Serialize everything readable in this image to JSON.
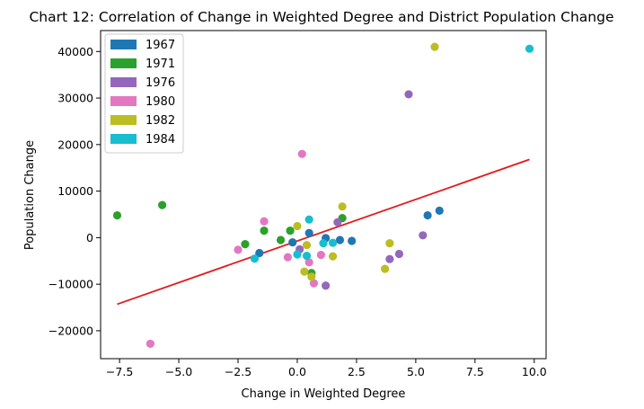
{
  "chart_data": {
    "type": "scatter",
    "title": "Chart 12: Correlation of Change in Weighted Degree and District Population Change",
    "xlabel": "Change in Weighted Degree",
    "ylabel": "Population Change",
    "xlim": [
      -8.3,
      10.5
    ],
    "ylim": [
      -26000,
      44500
    ],
    "xticks": [
      -7.5,
      -5.0,
      -2.5,
      0.0,
      2.5,
      5.0,
      7.5,
      10.0
    ],
    "xtick_labels": [
      "−7.5",
      "−5.0",
      "−2.5",
      "0.0",
      "2.5",
      "5.0",
      "7.5",
      "10.0"
    ],
    "yticks": [
      -20000,
      -10000,
      0,
      10000,
      20000,
      30000,
      40000
    ],
    "ytick_labels": [
      "−20000",
      "−10000",
      "0",
      "10000",
      "20000",
      "30000",
      "40000"
    ],
    "grid": false,
    "legend_position": "top-left",
    "trendline": {
      "color": "#e31a1c",
      "x": [
        -7.6,
        9.8
      ],
      "y": [
        -14300,
        16800
      ]
    },
    "series": [
      {
        "name": "1967",
        "color": "#1f77b4",
        "points": [
          [
            -0.2,
            -1000
          ],
          [
            0.5,
            1000
          ],
          [
            1.2,
            -100
          ],
          [
            1.8,
            -500
          ],
          [
            2.3,
            -700
          ],
          [
            5.5,
            4800
          ],
          [
            6.0,
            5800
          ],
          [
            -1.6,
            -3300
          ]
        ]
      },
      {
        "name": "1971",
        "color": "#2ca02c",
        "points": [
          [
            -7.6,
            4800
          ],
          [
            -5.7,
            7000
          ],
          [
            -2.2,
            -1400
          ],
          [
            -1.4,
            1500
          ],
          [
            -0.7,
            -500
          ],
          [
            -0.3,
            1500
          ],
          [
            0.6,
            -7600
          ],
          [
            1.9,
            4200
          ]
        ]
      },
      {
        "name": "1976",
        "color": "#9467bd",
        "points": [
          [
            0.1,
            -2500
          ],
          [
            1.7,
            3300
          ],
          [
            1.2,
            -10300
          ],
          [
            3.9,
            -4600
          ],
          [
            4.3,
            -3500
          ],
          [
            4.7,
            30800
          ],
          [
            5.3,
            500
          ]
        ]
      },
      {
        "name": "1980",
        "color": "#e377c2",
        "points": [
          [
            -6.2,
            -22800
          ],
          [
            -2.5,
            -2600
          ],
          [
            -1.4,
            3500
          ],
          [
            -0.4,
            -4200
          ],
          [
            0.2,
            18000
          ],
          [
            0.5,
            -5300
          ],
          [
            0.7,
            -9800
          ],
          [
            1.0,
            -3700
          ]
        ]
      },
      {
        "name": "1982",
        "color": "#bcbd22",
        "points": [
          [
            0.0,
            2500
          ],
          [
            0.3,
            -7300
          ],
          [
            0.4,
            -1600
          ],
          [
            0.6,
            -8400
          ],
          [
            1.5,
            -4000
          ],
          [
            1.9,
            6700
          ],
          [
            3.7,
            -6700
          ],
          [
            3.9,
            -1200
          ],
          [
            5.8,
            41000
          ]
        ]
      },
      {
        "name": "1984",
        "color": "#17becf",
        "points": [
          [
            -1.8,
            -4500
          ],
          [
            0.0,
            -3600
          ],
          [
            0.5,
            3900
          ],
          [
            0.4,
            -3900
          ],
          [
            1.1,
            -1200
          ],
          [
            1.5,
            -1100
          ],
          [
            9.8,
            40600
          ]
        ]
      }
    ]
  }
}
